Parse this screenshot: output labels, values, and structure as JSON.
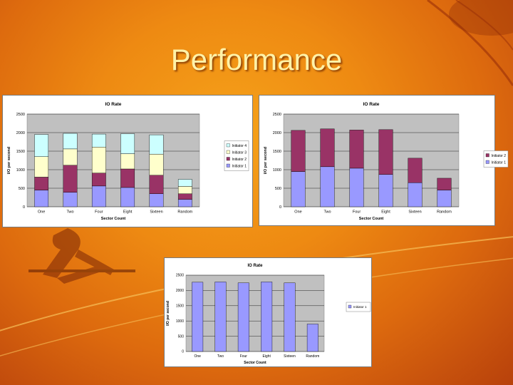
{
  "slide": {
    "title": "Performance"
  },
  "chart_data": [
    {
      "type": "bar",
      "stacked": true,
      "title": "IO Rate",
      "xlabel": "Sector Count",
      "ylabel": "I/O per second",
      "categories": [
        "One",
        "Two",
        "Four",
        "Eight",
        "Sixteen",
        "Random"
      ],
      "ylim": [
        0,
        2500
      ],
      "yticks": [
        0,
        500,
        1000,
        1500,
        2000,
        2500
      ],
      "grid": true,
      "legend_position": "right",
      "series": [
        {
          "name": "Initiator 1",
          "color": "#9999ff",
          "values": [
            450,
            390,
            560,
            520,
            350,
            200
          ]
        },
        {
          "name": "Initiator 2",
          "color": "#993366",
          "values": [
            350,
            730,
            350,
            500,
            500,
            150
          ]
        },
        {
          "name": "Initiator 3",
          "color": "#ffffcc",
          "values": [
            550,
            440,
            700,
            410,
            570,
            200
          ]
        },
        {
          "name": "Initiator 4",
          "color": "#ccffff",
          "values": [
            600,
            420,
            350,
            540,
            520,
            190
          ]
        }
      ]
    },
    {
      "type": "bar",
      "stacked": true,
      "title": "IO Rate",
      "xlabel": "Sector Count",
      "ylabel": "I/O per second",
      "categories": [
        "One",
        "Two",
        "Four",
        "Eight",
        "Sixteen",
        "Random"
      ],
      "ylim": [
        0,
        2500
      ],
      "yticks": [
        0,
        500,
        1000,
        1500,
        2000,
        2500
      ],
      "grid": true,
      "legend_position": "right",
      "series": [
        {
          "name": "Initiator 1",
          "color": "#9999ff",
          "values": [
            950,
            1080,
            1040,
            870,
            650,
            450
          ]
        },
        {
          "name": "Initiator 2",
          "color": "#993366",
          "values": [
            1110,
            1020,
            1030,
            1210,
            660,
            320
          ]
        }
      ]
    },
    {
      "type": "bar",
      "stacked": false,
      "title": "IO Rate",
      "xlabel": "Sector Count",
      "ylabel": "I/O per second",
      "categories": [
        "One",
        "Two",
        "Four",
        "Eight",
        "Sixteen",
        "Random"
      ],
      "ylim": [
        0,
        2500
      ],
      "yticks": [
        0,
        500,
        1000,
        1500,
        2000,
        2500
      ],
      "grid": true,
      "legend_position": "right",
      "series": [
        {
          "name": "Initiator 1",
          "color": "#9999ff",
          "values": [
            2270,
            2280,
            2250,
            2280,
            2250,
            900
          ]
        }
      ]
    }
  ]
}
